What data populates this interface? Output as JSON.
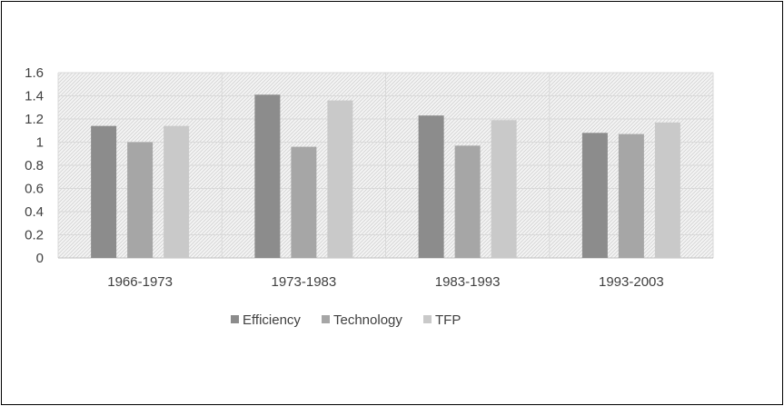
{
  "chart_data": {
    "type": "bar",
    "categories": [
      "1966-1973",
      "1973-1983",
      "1983-1993",
      "1993-2003"
    ],
    "series": [
      {
        "name": "Efficiency",
        "values": [
          1.14,
          1.41,
          1.23,
          1.08
        ],
        "color": "#8c8c8c"
      },
      {
        "name": "Technology",
        "values": [
          1.0,
          0.96,
          0.97,
          1.07
        ],
        "color": "#a6a6a6"
      },
      {
        "name": "TFP",
        "values": [
          1.14,
          1.36,
          1.19,
          1.17
        ],
        "color": "#c9c9c9"
      }
    ],
    "title": "",
    "xlabel": "",
    "ylabel": "",
    "ylim": [
      0,
      1.6
    ],
    "yticks": [
      "0",
      "0.2",
      "0.4",
      "0.6",
      "0.8",
      "1",
      "1.2",
      "1.4",
      "1.6"
    ],
    "grid": true,
    "legend_position": "bottom",
    "plot_background": "hatched-light-gray"
  }
}
